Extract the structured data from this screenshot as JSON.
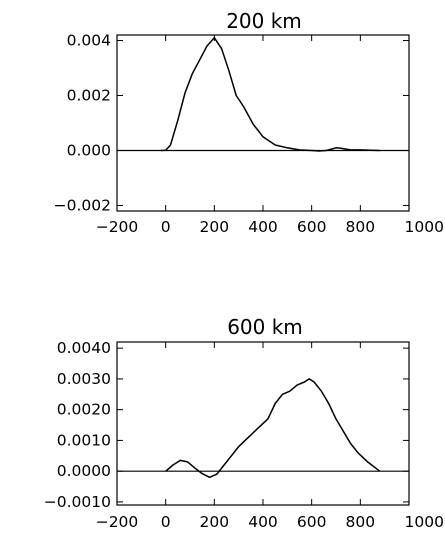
{
  "chart_data": [
    {
      "type": "line",
      "title": "200 km",
      "xlabel": "",
      "ylabel": "",
      "xlim": [
        -200,
        1000
      ],
      "ylim": [
        -0.0022,
        0.0042
      ],
      "x_ticks": [
        -200,
        0,
        200,
        400,
        600,
        800,
        1000
      ],
      "x_tick_labels": [
        "−200",
        "0",
        "200",
        "400",
        "600",
        "800",
        "1000"
      ],
      "y_ticks": [
        -0.002,
        0.0,
        0.002,
        0.004
      ],
      "y_tick_labels": [
        "−0.002",
        "0.000",
        "0.002",
        "0.004"
      ],
      "zero_line": true,
      "series": [
        {
          "x": [
            -20,
            0,
            20,
            50,
            80,
            110,
            140,
            170,
            200,
            230,
            260,
            290,
            320,
            360,
            400,
            450,
            500,
            550,
            600,
            630,
            660,
            700,
            720,
            760,
            800,
            880
          ],
          "y": [
            0.0,
            1e-05,
            0.0002,
            0.0011,
            0.0021,
            0.0028,
            0.0033,
            0.0038,
            0.0041,
            0.0037,
            0.0029,
            0.002,
            0.0016,
            0.00095,
            0.0005,
            0.0002,
            0.0001,
            2e-05,
            0.0,
            -2e-05,
            0.0,
            0.0001,
            8e-05,
            2e-05,
            2e-05,
            0.0
          ]
        }
      ]
    },
    {
      "type": "line",
      "title": "600 km",
      "xlabel": "",
      "ylabel": "",
      "xlim": [
        -200,
        1000
      ],
      "ylim": [
        -0.0011,
        0.0042
      ],
      "x_ticks": [
        -200,
        0,
        200,
        400,
        600,
        800,
        1000
      ],
      "x_tick_labels": [
        "−200",
        "0",
        "200",
        "400",
        "600",
        "800",
        "1000"
      ],
      "y_ticks": [
        -0.001,
        0.0,
        0.001,
        0.002,
        0.003,
        0.004
      ],
      "y_tick_labels": [
        "−0.0010",
        "0.0000",
        "0.0010",
        "0.0020",
        "0.0030",
        "0.0040"
      ],
      "zero_line": true,
      "series": [
        {
          "x": [
            0,
            30,
            60,
            90,
            120,
            150,
            180,
            210,
            240,
            270,
            300,
            340,
            380,
            420,
            450,
            480,
            510,
            540,
            570,
            590,
            610,
            640,
            670,
            700,
            730,
            760,
            790,
            830,
            880
          ],
          "y": [
            0.0,
            0.0002,
            0.00035,
            0.0003,
            0.0001,
            -8e-05,
            -0.0002,
            -0.0001,
            0.0002,
            0.0005,
            0.0008,
            0.0011,
            0.0014,
            0.0017,
            0.0022,
            0.0025,
            0.0026,
            0.0028,
            0.0029,
            0.003,
            0.0029,
            0.0026,
            0.0022,
            0.0017,
            0.0013,
            0.0009,
            0.0006,
            0.0003,
            0.0
          ]
        }
      ]
    }
  ]
}
